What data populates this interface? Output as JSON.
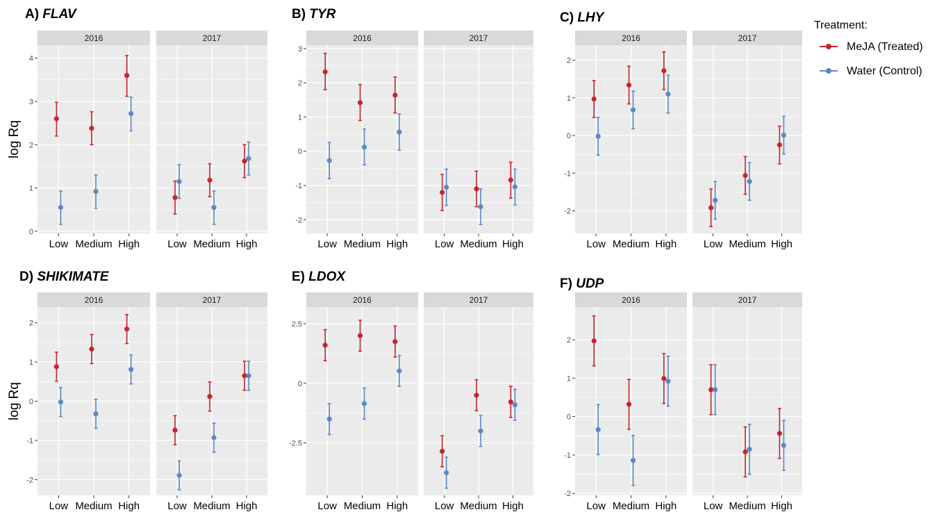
{
  "legend": {
    "title": "Treatment:",
    "items": [
      {
        "label": "MeJA (Treated)",
        "color": "#c8242b"
      },
      {
        "label": "Water (Control)",
        "color": "#5b88c6"
      }
    ]
  },
  "chart_data": [
    {
      "type": "scatter",
      "panel": "A",
      "title_prefix": "A)",
      "gene": "FLAV",
      "ylabel": "log Rq",
      "categories": [
        "Low",
        "Medium",
        "High"
      ],
      "years": [
        "2016",
        "2017"
      ],
      "ylim": [
        -0.05,
        4.3
      ],
      "yticks": [
        0,
        1,
        2,
        3,
        4
      ],
      "series": [
        {
          "name": "MeJA (Treated)",
          "facets": [
            {
              "year": "2016",
              "y": [
                2.6,
                2.38,
                3.6
              ],
              "lo": [
                2.2,
                2.0,
                3.12
              ],
              "hi": [
                2.98,
                2.76,
                4.06
              ]
            },
            {
              "year": "2017",
              "y": [
                0.78,
                1.18,
                1.62
              ],
              "lo": [
                0.4,
                0.8,
                1.24
              ],
              "hi": [
                1.16,
                1.56,
                2.0
              ]
            }
          ]
        },
        {
          "name": "Water (Control)",
          "facets": [
            {
              "year": "2016",
              "y": [
                0.55,
                0.92,
                2.72
              ],
              "lo": [
                0.16,
                0.53,
                2.32
              ],
              "hi": [
                0.93,
                1.3,
                3.1
              ]
            },
            {
              "year": "2017",
              "y": [
                1.15,
                0.55,
                1.68
              ],
              "lo": [
                0.76,
                0.16,
                1.3
              ],
              "hi": [
                1.54,
                0.93,
                2.06
              ]
            }
          ]
        }
      ]
    },
    {
      "type": "scatter",
      "panel": "B",
      "title_prefix": "B)",
      "gene": "TYR",
      "ylabel": "",
      "categories": [
        "Low",
        "Medium",
        "High"
      ],
      "years": [
        "2016",
        "2017"
      ],
      "ylim": [
        -2.4,
        3.1
      ],
      "yticks": [
        -2,
        -1,
        0,
        1,
        2,
        3
      ],
      "series": [
        {
          "name": "MeJA (Treated)",
          "facets": [
            {
              "year": "2016",
              "y": [
                2.32,
                1.42,
                1.64
              ],
              "lo": [
                1.8,
                0.9,
                1.12
              ],
              "hi": [
                2.86,
                1.95,
                2.17
              ]
            },
            {
              "year": "2017",
              "y": [
                -1.2,
                -1.1,
                -0.84
              ],
              "lo": [
                -1.73,
                -1.62,
                -1.37
              ],
              "hi": [
                -0.68,
                -0.58,
                -0.32
              ]
            }
          ]
        },
        {
          "name": "Water (Control)",
          "facets": [
            {
              "year": "2016",
              "y": [
                -0.27,
                0.12,
                0.56
              ],
              "lo": [
                -0.8,
                -0.4,
                0.03
              ],
              "hi": [
                0.26,
                0.65,
                1.09
              ]
            },
            {
              "year": "2017",
              "y": [
                -1.05,
                -1.62,
                -1.04
              ],
              "lo": [
                -1.58,
                -2.14,
                -1.57
              ],
              "hi": [
                -0.52,
                -1.1,
                -0.52
              ]
            }
          ]
        }
      ]
    },
    {
      "type": "scatter",
      "panel": "C",
      "title_prefix": "C)",
      "gene": "LHY",
      "ylabel": "",
      "categories": [
        "Low",
        "Medium",
        "High"
      ],
      "years": [
        "2016",
        "2017"
      ],
      "ylim": [
        -2.6,
        2.4
      ],
      "yticks": [
        -2,
        -1,
        0,
        1,
        2
      ],
      "series": [
        {
          "name": "MeJA (Treated)",
          "facets": [
            {
              "year": "2016",
              "y": [
                0.97,
                1.34,
                1.72
              ],
              "lo": [
                0.48,
                0.84,
                1.22
              ],
              "hi": [
                1.46,
                1.84,
                2.22
              ]
            },
            {
              "year": "2017",
              "y": [
                -1.92,
                -1.06,
                -0.25
              ],
              "lo": [
                -2.42,
                -1.56,
                -0.75
              ],
              "hi": [
                -1.42,
                -0.56,
                0.25
              ]
            }
          ]
        },
        {
          "name": "Water (Control)",
          "facets": [
            {
              "year": "2016",
              "y": [
                -0.02,
                0.68,
                1.1
              ],
              "lo": [
                -0.52,
                0.18,
                0.6
              ],
              "hi": [
                0.48,
                1.18,
                1.6
              ]
            },
            {
              "year": "2017",
              "y": [
                -1.72,
                -1.22,
                0.01
              ],
              "lo": [
                -2.22,
                -1.72,
                -0.49
              ],
              "hi": [
                -1.22,
                -0.72,
                0.51
              ]
            }
          ]
        }
      ]
    },
    {
      "type": "scatter",
      "panel": "D",
      "title_prefix": "D)",
      "gene": "SHIKIMATE",
      "ylabel": "log Rq",
      "categories": [
        "Low",
        "Medium",
        "High"
      ],
      "years": [
        "2016",
        "2017"
      ],
      "ylim": [
        -2.4,
        2.4
      ],
      "yticks": [
        -2,
        -1,
        0,
        1,
        2
      ],
      "series": [
        {
          "name": "MeJA (Treated)",
          "facets": [
            {
              "year": "2016",
              "y": [
                0.88,
                1.33,
                1.84
              ],
              "lo": [
                0.51,
                0.96,
                1.47
              ],
              "hi": [
                1.25,
                1.7,
                2.21
              ]
            },
            {
              "year": "2017",
              "y": [
                -0.74,
                0.12,
                0.65
              ],
              "lo": [
                -1.11,
                -0.25,
                0.28
              ],
              "hi": [
                -0.37,
                0.49,
                1.02
              ]
            }
          ]
        },
        {
          "name": "Water (Control)",
          "facets": [
            {
              "year": "2016",
              "y": [
                -0.02,
                -0.32,
                0.81
              ],
              "lo": [
                -0.39,
                -0.69,
                0.44
              ],
              "hi": [
                0.35,
                0.05,
                1.18
              ]
            },
            {
              "year": "2017",
              "y": [
                -1.89,
                -0.93,
                0.65
              ],
              "lo": [
                -2.26,
                -1.3,
                0.28
              ],
              "hi": [
                -1.52,
                -0.56,
                1.02
              ]
            }
          ]
        }
      ]
    },
    {
      "type": "scatter",
      "panel": "E",
      "title_prefix": "E)",
      "gene": "LDOX",
      "ylabel": "",
      "categories": [
        "Low",
        "Medium",
        "High"
      ],
      "years": [
        "2016",
        "2017"
      ],
      "ylim": [
        -4.7,
        3.2
      ],
      "yticks": [
        -2.5,
        0.0,
        2.5
      ],
      "series": [
        {
          "name": "MeJA (Treated)",
          "facets": [
            {
              "year": "2016",
              "y": [
                1.6,
                2.0,
                1.75
              ],
              "lo": [
                0.95,
                1.35,
                1.1
              ],
              "hi": [
                2.25,
                2.65,
                2.4
              ]
            },
            {
              "year": "2017",
              "y": [
                -2.85,
                -0.5,
                -0.78
              ],
              "lo": [
                -3.5,
                -1.15,
                -1.43
              ],
              "hi": [
                -2.2,
                0.15,
                -0.13
              ]
            }
          ]
        },
        {
          "name": "Water (Control)",
          "facets": [
            {
              "year": "2016",
              "y": [
                -1.5,
                -0.85,
                0.52
              ],
              "lo": [
                -2.15,
                -1.5,
                -0.13
              ],
              "hi": [
                -0.85,
                -0.2,
                1.17
              ]
            },
            {
              "year": "2017",
              "y": [
                -3.75,
                -2.0,
                -0.9
              ],
              "lo": [
                -4.4,
                -2.65,
                -1.55
              ],
              "hi": [
                -3.1,
                -1.35,
                -0.25
              ]
            }
          ]
        }
      ]
    },
    {
      "type": "scatter",
      "panel": "F",
      "title_prefix": "F)",
      "gene": "UDP",
      "ylabel": "",
      "categories": [
        "Low",
        "Medium",
        "High"
      ],
      "years": [
        "2016",
        "2017"
      ],
      "ylim": [
        -2.05,
        2.85
      ],
      "yticks": [
        -2,
        -1,
        0,
        1,
        2
      ],
      "series": [
        {
          "name": "MeJA (Treated)",
          "facets": [
            {
              "year": "2016",
              "y": [
                1.97,
                0.32,
                0.99
              ],
              "lo": [
                1.32,
                -0.33,
                0.34
              ],
              "hi": [
                2.62,
                0.97,
                1.64
              ]
            },
            {
              "year": "2017",
              "y": [
                0.7,
                -0.92,
                -0.44
              ],
              "lo": [
                0.05,
                -1.57,
                -1.09
              ],
              "hi": [
                1.35,
                -0.27,
                0.21
              ]
            }
          ]
        },
        {
          "name": "Water (Control)",
          "facets": [
            {
              "year": "2016",
              "y": [
                -0.34,
                -1.14,
                0.92
              ],
              "lo": [
                -0.99,
                -1.79,
                0.27
              ],
              "hi": [
                0.31,
                -0.49,
                1.57
              ]
            },
            {
              "year": "2017",
              "y": [
                0.7,
                -0.85,
                -0.75
              ],
              "lo": [
                0.05,
                -1.5,
                -1.4
              ],
              "hi": [
                1.35,
                -0.2,
                -0.1
              ]
            }
          ]
        }
      ]
    }
  ]
}
